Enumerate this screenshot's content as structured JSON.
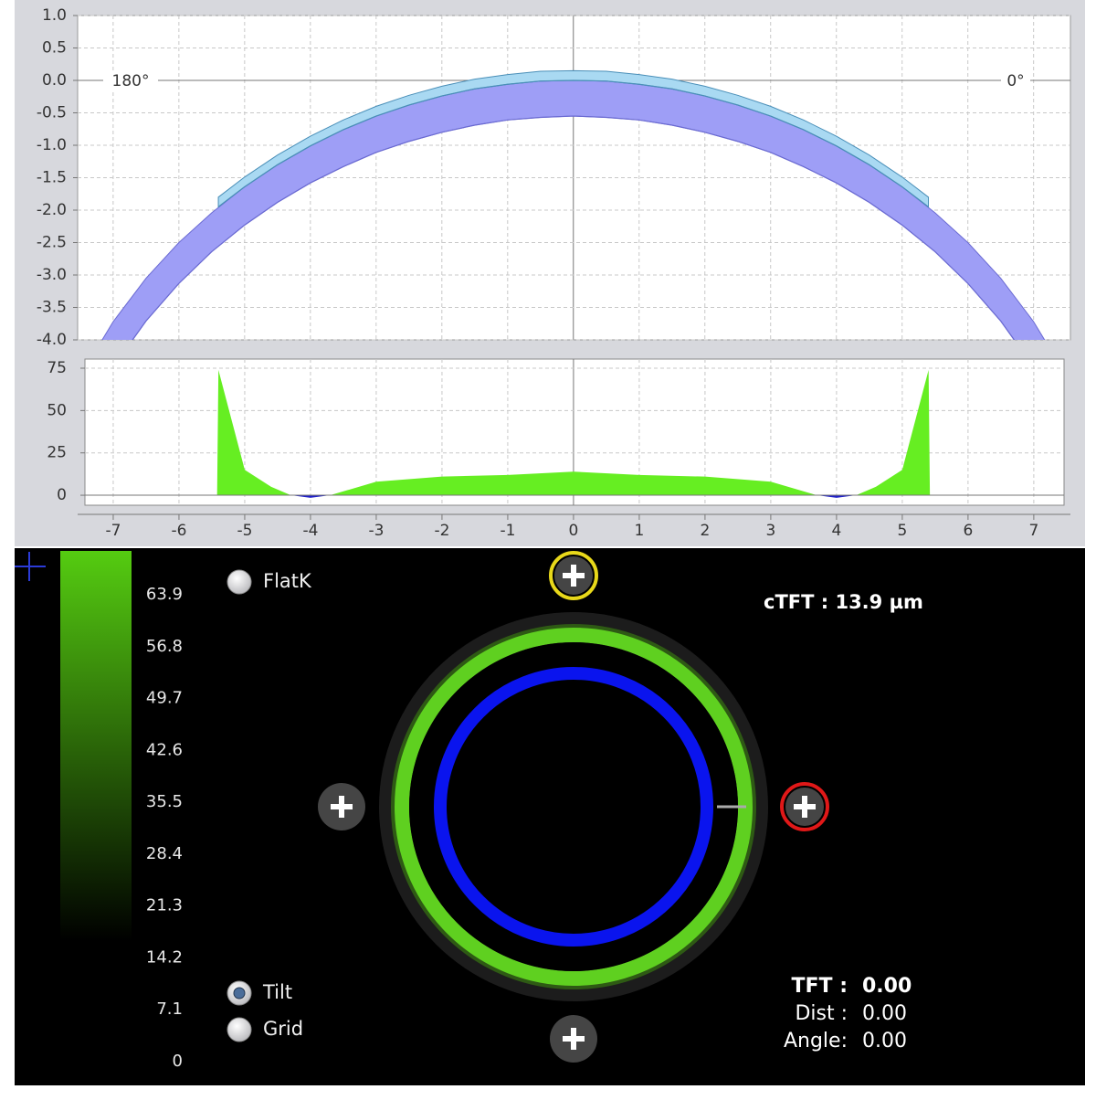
{
  "profile_chart": {
    "type": "band",
    "xlim": [
      -7.54,
      7.56
    ],
    "ylim": [
      -4,
      1
    ],
    "xticks": [
      -7,
      -6,
      -5,
      -4,
      -3,
      -2,
      -1,
      0,
      1,
      2,
      3,
      4,
      5,
      6,
      7
    ],
    "yticks": [
      {
        "value": 1,
        "label": "1.0"
      },
      {
        "value": 0.5,
        "label": "0.5"
      },
      {
        "value": 0,
        "label": "0.0"
      },
      {
        "value": -0.5,
        "label": "-0.5"
      },
      {
        "value": -1,
        "label": "-1.0"
      },
      {
        "value": -1.5,
        "label": "-1.5"
      },
      {
        "value": -2,
        "label": "-2.0"
      },
      {
        "value": -2.5,
        "label": "-2.5"
      },
      {
        "value": -3,
        "label": "-3.0"
      },
      {
        "value": -3.5,
        "label": "-3.5"
      },
      {
        "value": -4,
        "label": "-4.0"
      }
    ],
    "angle_labels": [
      "180°",
      "0°"
    ],
    "grid": true,
    "series": [
      {
        "color": "#9e9ef6",
        "edge_color": "#6b6bd2",
        "x": [
          -7.5,
          -7,
          -6.5,
          -6,
          -5.5,
          -5,
          -4.5,
          -4,
          -3.5,
          -3,
          -2.5,
          -2,
          -1.5,
          -1,
          -0.5,
          0,
          0.5,
          1,
          1.5,
          2,
          2.5,
          3,
          3.5,
          4,
          4.5,
          5,
          5.5,
          6,
          6.5,
          7,
          7.5
        ],
        "upper": [
          -4.56,
          -3.72,
          -3.05,
          -2.5,
          -2.04,
          -1.64,
          -1.3,
          -1.01,
          -0.76,
          -0.55,
          -0.38,
          -0.24,
          -0.13,
          -0.06,
          -0.01,
          0,
          -0.01,
          -0.06,
          -0.13,
          -0.24,
          -0.38,
          -0.55,
          -0.76,
          -1.01,
          -1.3,
          -1.64,
          -2.04,
          -2.5,
          -3.05,
          -3.72,
          -4.56
        ],
        "lower": [
          -5.34,
          -4.42,
          -3.71,
          -3.13,
          -2.64,
          -2.23,
          -1.88,
          -1.58,
          -1.33,
          -1.11,
          -0.94,
          -0.8,
          -0.69,
          -0.61,
          -0.57,
          -0.55,
          -0.57,
          -0.61,
          -0.69,
          -0.8,
          -0.94,
          -1.11,
          -1.33,
          -1.58,
          -1.88,
          -2.23,
          -2.64,
          -3.13,
          -3.71,
          -4.42,
          -5.34
        ]
      },
      {
        "color": "#a9d9f2",
        "edge_color": "#4a8fb8",
        "x": [
          -5.4,
          -5,
          -4.5,
          -4,
          -3.5,
          -3,
          -2.5,
          -2,
          -1.5,
          -1,
          -0.5,
          0,
          0.5,
          1,
          1.5,
          2,
          2.5,
          3,
          3.5,
          4,
          4.5,
          5,
          5.4
        ],
        "upper": [
          -1.8,
          -1.49,
          -1.15,
          -0.86,
          -0.61,
          -0.4,
          -0.23,
          -0.09,
          0.02,
          0.09,
          0.14,
          0.15,
          0.14,
          0.09,
          0.02,
          -0.09,
          -0.23,
          -0.4,
          -0.61,
          -0.86,
          -1.15,
          -1.49,
          -1.8
        ],
        "lower": [
          -1.95,
          -1.64,
          -1.3,
          -1.01,
          -0.76,
          -0.55,
          -0.38,
          -0.24,
          -0.13,
          -0.06,
          -0.01,
          0,
          -0.01,
          -0.06,
          -0.13,
          -0.24,
          -0.38,
          -0.55,
          -0.76,
          -1.01,
          -1.3,
          -1.64,
          -1.95
        ]
      }
    ]
  },
  "clearance_chart": {
    "type": "area",
    "xlim": [
      -7.43,
      7.46
    ],
    "ylim": [
      -5.9,
      80.4
    ],
    "xticks": [
      -7,
      -6,
      -5,
      -4,
      -3,
      -2,
      -1,
      0,
      1,
      2,
      3,
      4,
      5,
      6,
      7
    ],
    "yticks": [
      0,
      25,
      50,
      75
    ],
    "grid": true,
    "color": "#66ee22",
    "negative_color": "#2020c8",
    "x": [
      -5.42,
      -5.4,
      -5,
      -4.6,
      -4.3,
      -4,
      -3.7,
      -3,
      -2,
      -1,
      0,
      1,
      2,
      3,
      3.7,
      4,
      4.3,
      4.6,
      5,
      5.4,
      5.42
    ],
    "values": [
      0,
      74,
      15,
      5,
      0,
      -1.5,
      0,
      8,
      11,
      12,
      13.9,
      12,
      11,
      8,
      0,
      -1.5,
      0,
      5,
      15,
      74,
      0
    ]
  },
  "color_scale": {
    "lim": [
      0,
      69.9
    ],
    "color": "#55cc11",
    "ticks": [
      63.9,
      56.8,
      49.7,
      42.6,
      35.5,
      28.4,
      21.3,
      14.2,
      7.1,
      0
    ]
  },
  "options": [
    {
      "label": "FlatK",
      "selected": false
    },
    {
      "label": "Tilt",
      "selected": true
    },
    {
      "label": "Grid",
      "selected": false
    }
  ],
  "ctft": "cTFT : 13.9 µm",
  "readout": [
    [
      "TFT  :",
      "0.00"
    ],
    [
      "Dist :",
      "0.00"
    ],
    [
      "Angle:",
      "0.00"
    ]
  ]
}
